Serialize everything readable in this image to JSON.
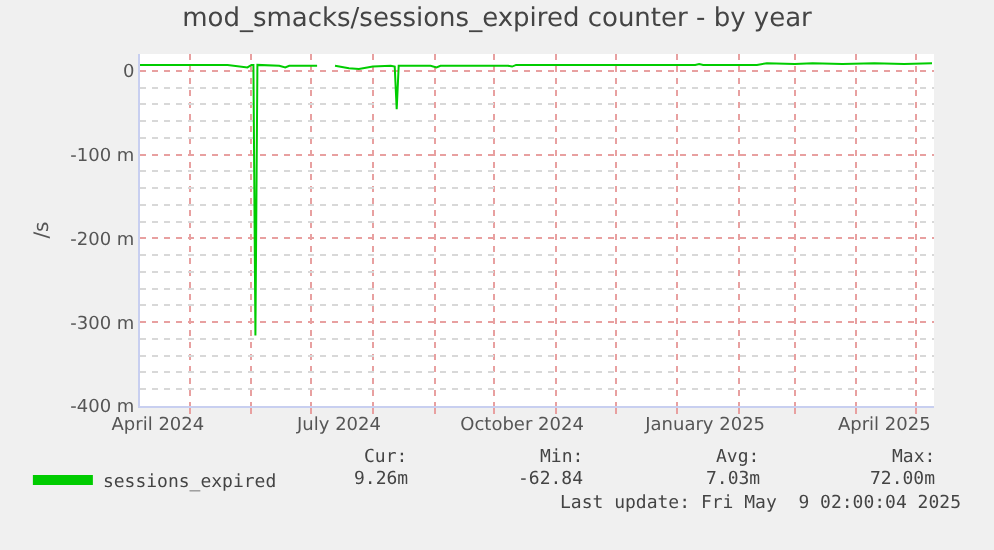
{
  "chart_data": {
    "type": "line",
    "title": "mod_smacks/sessions_expired counter - by year",
    "ylabel": "/s",
    "x": [
      "2024-04-06",
      "2024-05-20",
      "2024-05-30",
      "2024-06-01",
      "2024-06-02",
      "2024-06-03",
      "2024-06-04",
      "2024-06-15",
      "2024-06-18",
      "2024-06-20",
      "2024-07-04",
      "2024-07-08",
      "2024-07-13",
      "2024-07-20",
      "2024-07-25",
      "2024-08-01",
      "2024-08-10",
      "2024-08-12",
      "2024-08-13",
      "2024-08-14",
      "2024-08-30",
      "2024-09-02",
      "2024-09-04",
      "2024-10-08",
      "2024-10-10",
      "2024-10-12",
      "2025-01-10",
      "2025-01-12",
      "2025-01-14",
      "2025-02-10",
      "2025-02-15",
      "2025-03-01",
      "2025-03-10",
      "2025-03-25",
      "2025-04-10",
      "2025-04-25",
      "2025-05-09"
    ],
    "series": [
      {
        "name": "sessions_expired",
        "color": "#00cc00",
        "values": [
          7,
          7,
          4,
          7,
          7,
          -316,
          7,
          6,
          4,
          6,
          6,
          null,
          6,
          3,
          2,
          5,
          6,
          5,
          -46,
          6,
          6,
          4,
          6,
          6,
          5,
          7,
          7,
          8,
          7,
          7,
          9,
          8,
          9,
          8,
          9,
          8,
          9
        ]
      }
    ],
    "xlim": [
      "2024-04-06",
      "2025-05-10"
    ],
    "xticks": [
      {
        "value": "2024-04-15",
        "label": "April 2024"
      },
      {
        "value": "2024-07-15",
        "label": "July 2024"
      },
      {
        "value": "2024-10-15",
        "label": "October 2024"
      },
      {
        "value": "2025-01-15",
        "label": "January 2025"
      },
      {
        "value": "2025-04-15",
        "label": "April 2025"
      },
      {
        "value": "2024-05-01",
        "label": null
      },
      {
        "value": "2024-06-01",
        "label": null
      },
      {
        "value": "2024-07-01",
        "label": null
      },
      {
        "value": "2024-08-01",
        "label": null
      },
      {
        "value": "2024-09-01",
        "label": null
      },
      {
        "value": "2024-10-01",
        "label": null
      },
      {
        "value": "2024-11-01",
        "label": null
      },
      {
        "value": "2024-12-01",
        "label": null
      },
      {
        "value": "2025-01-01",
        "label": null
      },
      {
        "value": "2025-02-01",
        "label": null
      },
      {
        "value": "2025-03-01",
        "label": null
      },
      {
        "value": "2025-04-01",
        "label": null
      },
      {
        "value": "2025-05-01",
        "label": null
      }
    ],
    "ylim": [
      -400,
      20
    ],
    "yticks": [
      {
        "value": 0,
        "label": "0"
      },
      {
        "value": -100,
        "label": "-100 m"
      },
      {
        "value": -200,
        "label": "-200 m"
      },
      {
        "value": -300,
        "label": "-300 m"
      },
      {
        "value": -400,
        "label": "-400 m"
      },
      {
        "value": -20,
        "label": null
      },
      {
        "value": -40,
        "label": null
      },
      {
        "value": -60,
        "label": null
      },
      {
        "value": -80,
        "label": null
      },
      {
        "value": -120,
        "label": null
      },
      {
        "value": -140,
        "label": null
      },
      {
        "value": -160,
        "label": null
      },
      {
        "value": -180,
        "label": null
      },
      {
        "value": -220,
        "label": null
      },
      {
        "value": -240,
        "label": null
      },
      {
        "value": -260,
        "label": null
      },
      {
        "value": -280,
        "label": null
      },
      {
        "value": -320,
        "label": null
      },
      {
        "value": -340,
        "label": null
      },
      {
        "value": -360,
        "label": null
      },
      {
        "value": -380,
        "label": null
      }
    ],
    "grid": true,
    "legend": "bottom left",
    "line_style": "solid",
    "annotations": [
      "Cur:",
      "9.26m",
      "Min:",
      "-62.84",
      "Avg:",
      "7.03m",
      "Max:",
      "72.00m",
      "Last update: Fri May  9 02:00:04 2025"
    ]
  }
}
